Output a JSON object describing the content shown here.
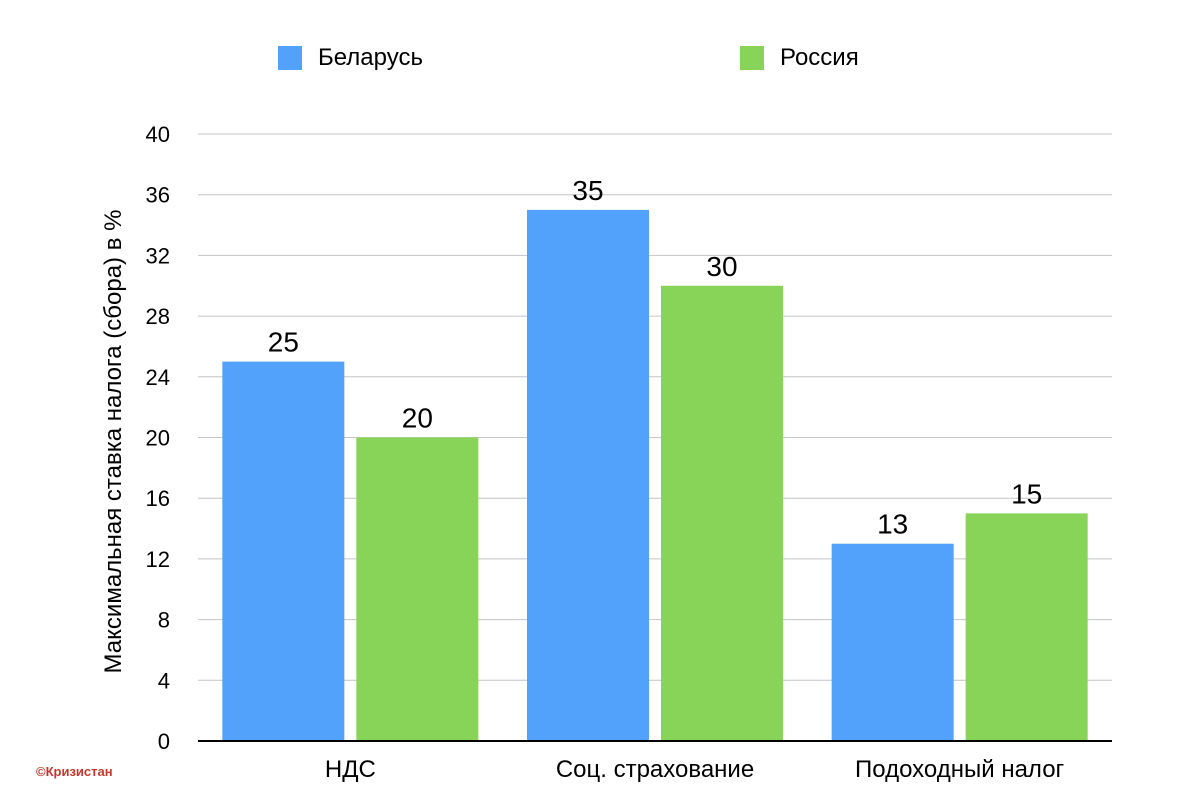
{
  "colors": {
    "belarus": "#52A2FB",
    "russia": "#88D459",
    "grid": "#c4c4c4",
    "axis": "#000000",
    "copyright": "#c0392b"
  },
  "legend": {
    "belarus_label": "Беларусь",
    "russia_label": "Россия"
  },
  "copyright": "©Кризистан",
  "chart_data": {
    "type": "bar",
    "title": "",
    "xlabel": "",
    "ylabel": "Максимальная ставка налога (сбора) в %",
    "ylim": [
      0,
      40
    ],
    "yticks": [
      0,
      4,
      8,
      12,
      16,
      20,
      24,
      28,
      32,
      36,
      40
    ],
    "grid": true,
    "legend_position": "top",
    "categories": [
      "НДС",
      "Соц. страхование",
      "Подоходный налог"
    ],
    "series": [
      {
        "name": "Беларусь",
        "values": [
          25,
          35,
          13
        ]
      },
      {
        "name": "Россия",
        "values": [
          20,
          30,
          15
        ]
      }
    ]
  }
}
